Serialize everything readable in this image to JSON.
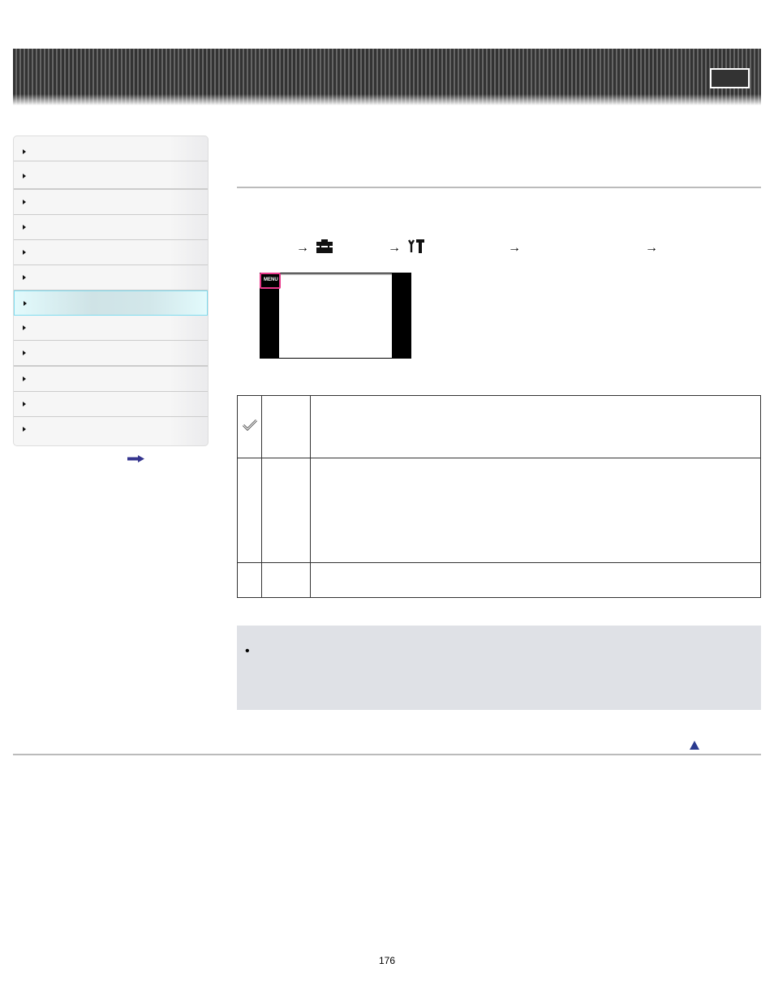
{
  "banner": {
    "icon": "header-box"
  },
  "sidebar": {
    "items": [
      {
        "label": ""
      },
      {
        "label": ""
      },
      {
        "label": ""
      },
      {
        "label": ""
      },
      {
        "label": ""
      },
      {
        "label": ""
      },
      {
        "label": "",
        "active": true
      },
      {
        "label": ""
      },
      {
        "label": ""
      },
      {
        "label": ""
      },
      {
        "label": ""
      },
      {
        "label": ""
      }
    ],
    "more_icon": "arrow-right-icon"
  },
  "steps": {
    "icons": [
      "toolbox-icon",
      "settings-tools-icon"
    ],
    "arrow": "→"
  },
  "screen": {
    "menu_label": "MENU",
    "highlight_color": "#e8388a"
  },
  "table": {
    "rows": [
      {
        "icon": "checkmark-icon"
      },
      {},
      {}
    ]
  },
  "note": {
    "bullet": "•"
  },
  "footer": {
    "page_number": "176",
    "top_icon": "up-triangle-icon"
  }
}
